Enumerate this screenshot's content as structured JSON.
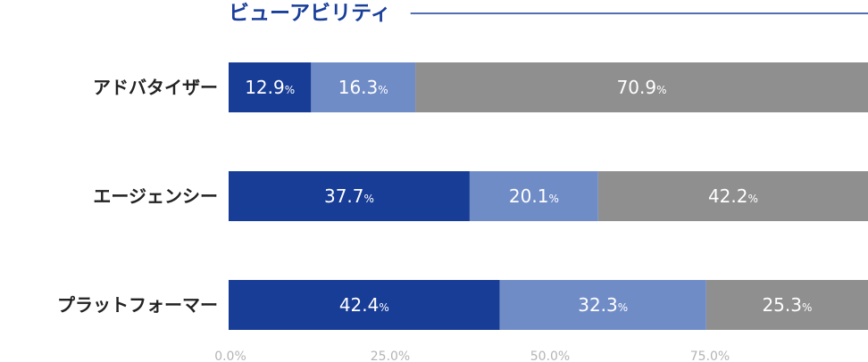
{
  "chart_data": {
    "type": "bar",
    "orientation": "horizontal",
    "stacked": true,
    "title": "ビューアビリティ",
    "categories": [
      "アドバタイザー",
      "エージェンシー",
      "プラットフォーマー"
    ],
    "series": [
      {
        "values": [
          12.9,
          37.7,
          42.4
        ],
        "color": "#183d96"
      },
      {
        "values": [
          16.3,
          20.1,
          32.3
        ],
        "color": "#708cc7"
      },
      {
        "values": [
          70.9,
          42.2,
          25.3
        ],
        "color": "#8f8f8f"
      }
    ],
    "value_suffix": "%",
    "xlim": [
      0,
      100
    ],
    "x_ticks": [
      "0.0%",
      "25.0%",
      "50.0%",
      "75.0%"
    ],
    "grid": false,
    "legend": "none",
    "title_color": "#1a3f9a"
  }
}
